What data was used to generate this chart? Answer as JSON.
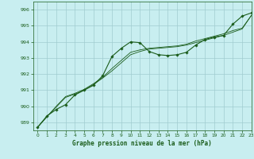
{
  "title": "Graphe pression niveau de la mer (hPa)",
  "background_color": "#c8eef0",
  "grid_color": "#a0ccd0",
  "line_color": "#1a5c1a",
  "marker_color": "#1a5c1a",
  "xlim": [
    -0.5,
    23
  ],
  "ylim": [
    988.5,
    996.5
  ],
  "yticks": [
    989,
    990,
    991,
    992,
    993,
    994,
    995,
    996
  ],
  "xticks": [
    0,
    1,
    2,
    3,
    4,
    5,
    6,
    7,
    8,
    9,
    10,
    11,
    12,
    13,
    14,
    15,
    16,
    17,
    18,
    19,
    20,
    21,
    22,
    23
  ],
  "series1": [
    988.7,
    989.4,
    989.8,
    990.1,
    990.7,
    991.0,
    991.3,
    991.9,
    993.1,
    993.6,
    994.0,
    993.95,
    993.4,
    993.2,
    993.15,
    993.2,
    993.35,
    993.8,
    994.15,
    994.3,
    994.4,
    995.1,
    995.6,
    995.8
  ],
  "series2": [
    988.7,
    989.35,
    989.95,
    990.55,
    990.75,
    991.0,
    991.35,
    991.75,
    992.2,
    992.7,
    993.2,
    993.4,
    993.55,
    993.6,
    993.65,
    993.7,
    993.8,
    993.95,
    994.1,
    994.25,
    994.4,
    994.6,
    994.8,
    995.65
  ],
  "series3": [
    988.7,
    989.35,
    990.0,
    990.6,
    990.8,
    991.05,
    991.4,
    991.8,
    992.35,
    992.85,
    993.35,
    993.5,
    993.6,
    993.65,
    993.7,
    993.75,
    993.85,
    994.05,
    994.2,
    994.35,
    994.5,
    994.7,
    994.85,
    995.65
  ]
}
